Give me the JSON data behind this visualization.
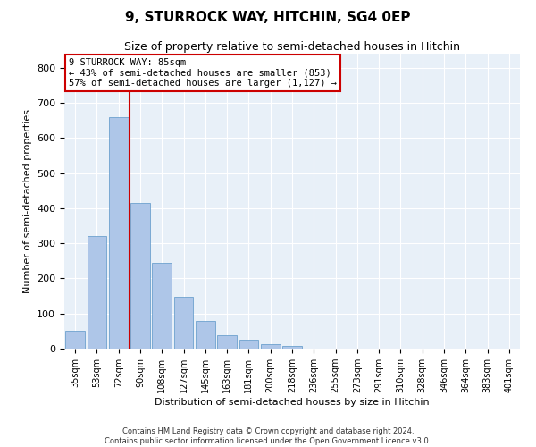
{
  "title": "9, STURROCK WAY, HITCHIN, SG4 0EP",
  "subtitle": "Size of property relative to semi-detached houses in Hitchin",
  "xlabel": "Distribution of semi-detached houses by size in Hitchin",
  "ylabel": "Number of semi-detached properties",
  "categories": [
    "35sqm",
    "53sqm",
    "72sqm",
    "90sqm",
    "108sqm",
    "127sqm",
    "145sqm",
    "163sqm",
    "181sqm",
    "200sqm",
    "218sqm",
    "236sqm",
    "255sqm",
    "273sqm",
    "291sqm",
    "310sqm",
    "328sqm",
    "346sqm",
    "364sqm",
    "383sqm",
    "401sqm"
  ],
  "values": [
    50,
    320,
    660,
    415,
    245,
    148,
    78,
    38,
    25,
    13,
    7,
    0,
    0,
    0,
    0,
    0,
    0,
    0,
    0,
    0,
    0
  ],
  "bar_color": "#aec6e8",
  "bar_edge_color": "#5a96c8",
  "vline_x": 2.5,
  "vline_color": "#cc0000",
  "annotation_title": "9 STURROCK WAY: 85sqm",
  "annotation_line1": "← 43% of semi-detached houses are smaller (853)",
  "annotation_line2": "57% of semi-detached houses are larger (1,127) →",
  "annotation_box_color": "#cc0000",
  "ylim": [
    0,
    840
  ],
  "yticks": [
    0,
    100,
    200,
    300,
    400,
    500,
    600,
    700,
    800
  ],
  "background_color": "#e8f0f8",
  "footer_line1": "Contains HM Land Registry data © Crown copyright and database right 2024.",
  "footer_line2": "Contains public sector information licensed under the Open Government Licence v3.0."
}
